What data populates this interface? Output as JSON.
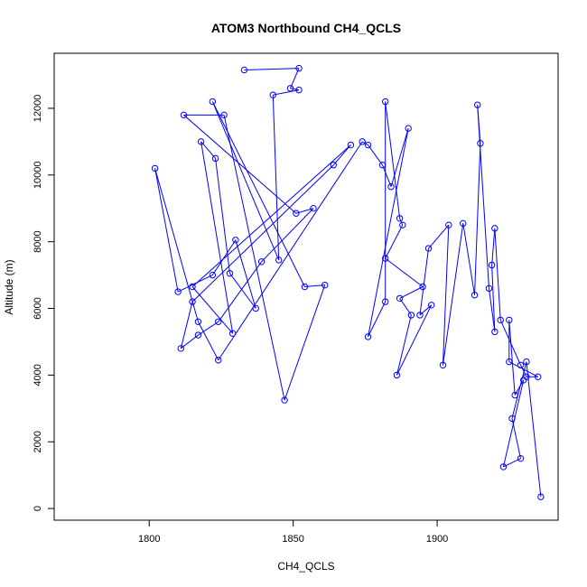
{
  "chart_data": {
    "type": "scatter",
    "title": "ATOM3 Northbound CH4_QCLS",
    "xlabel": "CH4_QCLS",
    "ylabel": "Altitude (m)",
    "xlim": [
      1767,
      1942
    ],
    "ylim": [
      -350,
      13650
    ],
    "xticks": [
      1800,
      1850,
      1900
    ],
    "yticks": [
      0,
      2000,
      4000,
      6000,
      8000,
      10000,
      12000
    ],
    "grid": false,
    "legend": "none",
    "point_style": "open-circle",
    "connected": true,
    "color": "#0000ff",
    "series": [
      {
        "x": [
          1833,
          1852,
          1849,
          1852,
          1843,
          1845,
          1822,
          1854,
          1861,
          1847,
          1826,
          1812,
          1851,
          1857,
          1839,
          1824,
          1817,
          1811,
          1815,
          1864,
          1870,
          1815,
          1829,
          1818,
          1823,
          1828,
          1837,
          1830,
          1822,
          1810,
          1802,
          1817,
          1824,
          1874,
          1876,
          1881,
          1884,
          1890,
          1876,
          1882,
          1882,
          1887,
          1888,
          1882,
          1895,
          1887,
          1891,
          1886,
          1898,
          1894,
          1897,
          1904,
          1902,
          1909,
          1913,
          1915,
          1914,
          1918,
          1920,
          1919,
          1920,
          1922,
          1929,
          1931,
          1935,
          1925,
          1925,
          1927,
          1930,
          1923,
          1929,
          1926,
          1931,
          1936
        ],
        "y": [
          13150,
          13200,
          12600,
          12550,
          12400,
          7450,
          12200,
          6650,
          6700,
          3250,
          11800,
          11800,
          8850,
          9000,
          7400,
          5600,
          5200,
          4800,
          6200,
          10300,
          10900,
          6650,
          5250,
          11000,
          10500,
          7050,
          6000,
          8050,
          7000,
          6500,
          10200,
          5600,
          4450,
          11000,
          10900,
          10300,
          9650,
          11400,
          5150,
          6200,
          12200,
          8700,
          8500,
          7500,
          6650,
          6300,
          5800,
          4000,
          6100,
          5800,
          7800,
          8500,
          4300,
          8550,
          6400,
          10950,
          12100,
          6600,
          5300,
          7300,
          8400,
          5650,
          4300,
          3950,
          3950,
          4400,
          5650,
          3400,
          3850,
          1250,
          1500,
          2700,
          4400,
          350
        ]
      }
    ]
  }
}
